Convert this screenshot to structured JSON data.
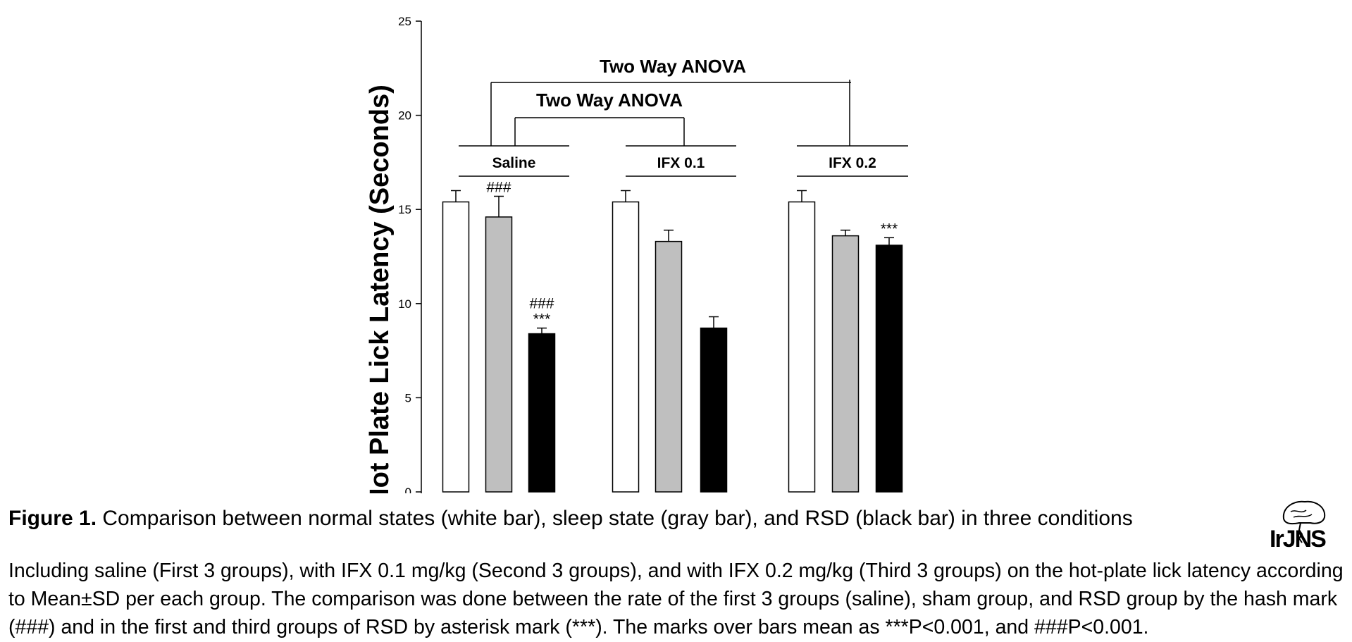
{
  "chart_data": {
    "type": "bar",
    "ylabel": "Hot Plate Lick Latency (Seconds)",
    "ylim": [
      0,
      25
    ],
    "yticks": [
      0,
      5,
      10,
      15,
      20,
      25
    ],
    "groups": [
      "Saline",
      "IFX 0.1",
      "IFX 0.2"
    ],
    "series": [
      {
        "color": "#ffffff",
        "values": [
          15.4,
          15.4,
          15.4
        ],
        "errors": [
          0.6,
          0.6,
          0.6
        ]
      },
      {
        "color": "#bfbfbf",
        "values": [
          14.6,
          13.3,
          13.6
        ],
        "errors": [
          1.1,
          0.6,
          0.3
        ]
      },
      {
        "color": "#000000",
        "values": [
          8.4,
          8.7,
          13.1
        ],
        "errors": [
          0.3,
          0.6,
          0.4
        ]
      }
    ],
    "marks": [
      {
        "group": 0,
        "series": 1,
        "lines": [
          "###"
        ]
      },
      {
        "group": 0,
        "series": 2,
        "lines": [
          "###",
          "***"
        ]
      },
      {
        "group": 2,
        "series": 2,
        "lines": [
          "***"
        ]
      }
    ],
    "anova_labels": [
      "Two Way ANOVA",
      "Two Way ANOVA"
    ]
  },
  "caption": {
    "figure_label": "Figure 1.",
    "title": " Comparison between normal states (white bar), sleep state (gray bar), and RSD (black bar) in three conditions",
    "body": "Including saline (First 3 groups), with IFX 0.1 mg/kg (Second 3 groups), and with IFX 0.2 mg/kg (Third 3 groups) on the hot-plate lick latency according to Mean±SD per each group. The comparison was done between the rate of the first 3 groups (saline), sham group, and RSD group by the hash mark (###) and in the first and third groups of RSD by asterisk mark (***). The marks over bars mean as ***P<0.001, and ###P<0.001."
  },
  "logo": {
    "text": "IrJNS"
  }
}
